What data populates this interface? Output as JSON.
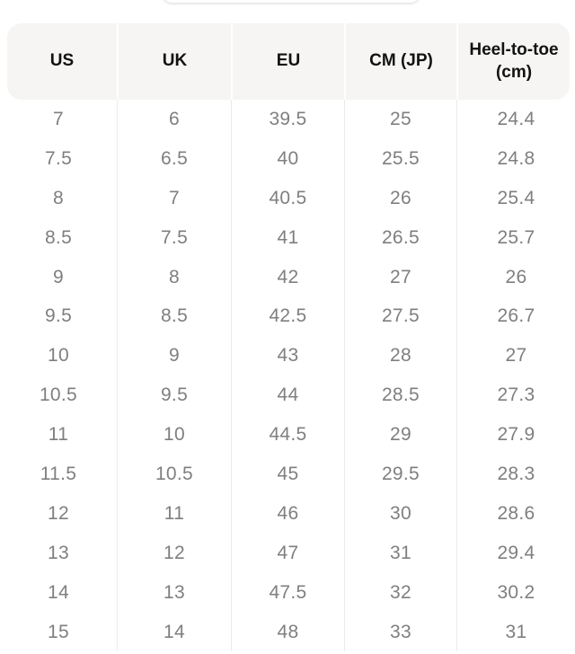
{
  "colors": {
    "header_background": "#f6f5f3",
    "header_text": "#121212",
    "body_text": "#7f7f7f",
    "divider": "#ebebea"
  },
  "table": {
    "columns": [
      {
        "label": "US"
      },
      {
        "label": "UK"
      },
      {
        "label": "EU"
      },
      {
        "label": "CM (JP)"
      },
      {
        "label": "Heel-to-toe (cm)"
      }
    ],
    "rows": [
      [
        "7",
        "6",
        "39.5",
        "25",
        "24.4"
      ],
      [
        "7.5",
        "6.5",
        "40",
        "25.5",
        "24.8"
      ],
      [
        "8",
        "7",
        "40.5",
        "26",
        "25.4"
      ],
      [
        "8.5",
        "7.5",
        "41",
        "26.5",
        "25.7"
      ],
      [
        "9",
        "8",
        "42",
        "27",
        "26"
      ],
      [
        "9.5",
        "8.5",
        "42.5",
        "27.5",
        "26.7"
      ],
      [
        "10",
        "9",
        "43",
        "28",
        "27"
      ],
      [
        "10.5",
        "9.5",
        "44",
        "28.5",
        "27.3"
      ],
      [
        "11",
        "10",
        "44.5",
        "29",
        "27.9"
      ],
      [
        "11.5",
        "10.5",
        "45",
        "29.5",
        "28.3"
      ],
      [
        "12",
        "11",
        "46",
        "30",
        "28.6"
      ],
      [
        "13",
        "12",
        "47",
        "31",
        "29.4"
      ],
      [
        "14",
        "13",
        "47.5",
        "32",
        "30.2"
      ],
      [
        "15",
        "14",
        "48",
        "33",
        "31"
      ]
    ]
  }
}
